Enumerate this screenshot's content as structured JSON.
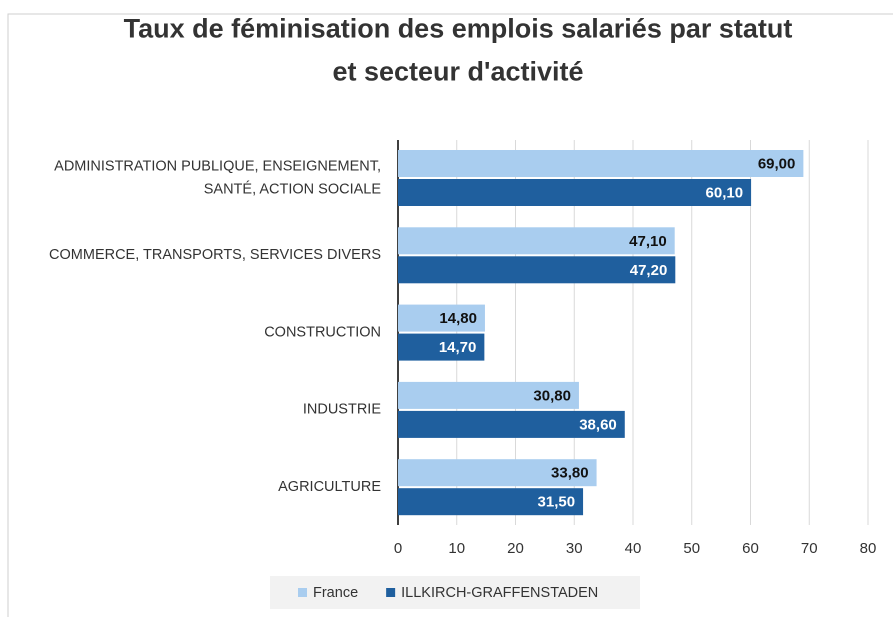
{
  "chart_data": {
    "type": "barh",
    "title": "Taux de féminisation des emplois salariés par statut et secteur d'activité",
    "categories": [
      "ADMINISTRATION PUBLIQUE, ENSEIGNEMENT, SANTÉ, ACTION SOCIALE",
      "COMMERCE, TRANSPORTS, SERVICES DIVERS",
      "CONSTRUCTION",
      "INDUSTRIE",
      "AGRICULTURE"
    ],
    "series": [
      {
        "name": "France",
        "color": "#a9cdef",
        "values": [
          69.0,
          47.1,
          14.8,
          30.8,
          33.8
        ],
        "value_labels": [
          "69,00",
          "47,10",
          "14,80",
          "30,80",
          "33,80"
        ]
      },
      {
        "name": "ILLKIRCH-GRAFFENSTADEN",
        "color": "#1f5f9e",
        "values": [
          60.1,
          47.2,
          14.7,
          38.6,
          31.5
        ],
        "value_labels": [
          "60,10",
          "47,20",
          "14,70",
          "38,60",
          "31,50"
        ]
      }
    ],
    "xlim": [
      0,
      80
    ],
    "xticks": [
      0,
      10,
      20,
      30,
      40,
      50,
      60,
      70,
      80
    ],
    "grid": true,
    "legend": "bottom"
  }
}
